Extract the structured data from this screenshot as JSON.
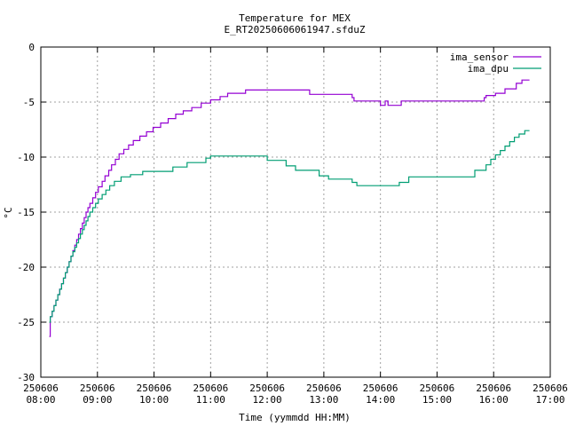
{
  "chart_data": {
    "type": "line",
    "title": "Temperature for MEX",
    "subtitle": "E_RT20250606061947.sfduZ",
    "xlabel": "Time (yymmdd HH:MM)",
    "ylabel": "°C",
    "xlim": [
      "250606 08:00",
      "250606 17:00"
    ],
    "ylim": [
      -30,
      0
    ],
    "yticks": [
      0,
      -5,
      -10,
      -15,
      -20,
      -25,
      -30
    ],
    "xtick_dates": [
      "250606",
      "250606",
      "250606",
      "250606",
      "250606",
      "250606",
      "250606",
      "250606",
      "250606",
      "250606"
    ],
    "xtick_times": [
      "08:00",
      "09:00",
      "10:00",
      "11:00",
      "12:00",
      "13:00",
      "14:00",
      "15:00",
      "16:00",
      "17:00"
    ],
    "grid": true,
    "legend_position": "top-right",
    "series": [
      {
        "name": "ima_sensor",
        "color": "#9400d3",
        "points": [
          [
            "08:09",
            -26.3
          ],
          [
            "08:10",
            -24.5
          ],
          [
            "08:12",
            -24.0
          ],
          [
            "08:14",
            -23.5
          ],
          [
            "08:16",
            -23.0
          ],
          [
            "08:18",
            -22.5
          ],
          [
            "08:20",
            -22.0
          ],
          [
            "08:22",
            -21.5
          ],
          [
            "08:24",
            -21.0
          ],
          [
            "08:26",
            -20.5
          ],
          [
            "08:28",
            -20.0
          ],
          [
            "08:30",
            -19.5
          ],
          [
            "08:32",
            -19.0
          ],
          [
            "08:34",
            -18.5
          ],
          [
            "08:36",
            -18.0
          ],
          [
            "08:38",
            -17.5
          ],
          [
            "08:40",
            -17.0
          ],
          [
            "08:42",
            -16.5
          ],
          [
            "08:44",
            -16.0
          ],
          [
            "08:46",
            -15.5
          ],
          [
            "08:48",
            -15.0
          ],
          [
            "08:50",
            -14.6
          ],
          [
            "08:52",
            -14.2
          ],
          [
            "08:55",
            -13.7
          ],
          [
            "08:58",
            -13.2
          ],
          [
            "09:01",
            -12.7
          ],
          [
            "09:05",
            -12.2
          ],
          [
            "09:08",
            -11.7
          ],
          [
            "09:12",
            -11.2
          ],
          [
            "09:15",
            -10.7
          ],
          [
            "09:19",
            -10.2
          ],
          [
            "09:23",
            -9.7
          ],
          [
            "09:28",
            -9.3
          ],
          [
            "09:33",
            -8.9
          ],
          [
            "09:38",
            -8.5
          ],
          [
            "09:45",
            -8.1
          ],
          [
            "09:52",
            -7.7
          ],
          [
            "09:59",
            -7.3
          ],
          [
            "10:07",
            -6.9
          ],
          [
            "10:15",
            -6.5
          ],
          [
            "10:23",
            -6.1
          ],
          [
            "10:31",
            -5.8
          ],
          [
            "10:40",
            -5.5
          ],
          [
            "10:50",
            -5.1
          ],
          [
            "11:00",
            -4.8
          ],
          [
            "11:10",
            -4.5
          ],
          [
            "11:18",
            -4.2
          ],
          [
            "11:37",
            -3.9
          ],
          [
            "12:45",
            -4.3
          ],
          [
            "13:30",
            -4.6
          ],
          [
            "13:32",
            -4.9
          ],
          [
            "14:00",
            -5.3
          ],
          [
            "14:05",
            -4.9
          ],
          [
            "14:08",
            -5.3
          ],
          [
            "14:22",
            -4.9
          ],
          [
            "15:50",
            -4.6
          ],
          [
            "15:52",
            -4.4
          ],
          [
            "16:02",
            -4.2
          ],
          [
            "16:12",
            -3.8
          ],
          [
            "16:24",
            -3.3
          ],
          [
            "16:30",
            -3.0
          ],
          [
            "16:38",
            -3.0
          ]
        ]
      },
      {
        "name": "ima_dpu",
        "color": "#009e73",
        "points": [
          [
            "08:09",
            -25.0
          ],
          [
            "08:10",
            -24.5
          ],
          [
            "08:12",
            -24.0
          ],
          [
            "08:14",
            -23.5
          ],
          [
            "08:16",
            -23.0
          ],
          [
            "08:18",
            -22.5
          ],
          [
            "08:20",
            -22.0
          ],
          [
            "08:22",
            -21.5
          ],
          [
            "08:24",
            -21.0
          ],
          [
            "08:26",
            -20.5
          ],
          [
            "08:28",
            -20.0
          ],
          [
            "08:30",
            -19.5
          ],
          [
            "08:32",
            -19.0
          ],
          [
            "08:34",
            -18.6
          ],
          [
            "08:36",
            -18.2
          ],
          [
            "08:38",
            -17.8
          ],
          [
            "08:40",
            -17.4
          ],
          [
            "08:42",
            -17.0
          ],
          [
            "08:44",
            -16.6
          ],
          [
            "08:46",
            -16.2
          ],
          [
            "08:48",
            -15.8
          ],
          [
            "08:50",
            -15.4
          ],
          [
            "08:52",
            -15.0
          ],
          [
            "08:55",
            -14.6
          ],
          [
            "08:58",
            -14.2
          ],
          [
            "09:01",
            -13.8
          ],
          [
            "09:05",
            -13.4
          ],
          [
            "09:09",
            -13.0
          ],
          [
            "09:13",
            -12.6
          ],
          [
            "09:18",
            -12.2
          ],
          [
            "09:25",
            -11.8
          ],
          [
            "09:35",
            -11.6
          ],
          [
            "09:48",
            -11.3
          ],
          [
            "10:20",
            -10.9
          ],
          [
            "10:35",
            -10.5
          ],
          [
            "10:55",
            -10.1
          ],
          [
            "11:00",
            -9.9
          ],
          [
            "12:00",
            -10.3
          ],
          [
            "12:20",
            -10.8
          ],
          [
            "12:30",
            -11.2
          ],
          [
            "12:55",
            -11.7
          ],
          [
            "13:05",
            -12.0
          ],
          [
            "13:30",
            -12.3
          ],
          [
            "13:35",
            -12.6
          ],
          [
            "14:20",
            -12.3
          ],
          [
            "14:30",
            -11.8
          ],
          [
            "15:40",
            -11.2
          ],
          [
            "15:52",
            -10.7
          ],
          [
            "15:57",
            -10.2
          ],
          [
            "16:02",
            -9.8
          ],
          [
            "16:07",
            -9.4
          ],
          [
            "16:12",
            -9.0
          ],
          [
            "16:17",
            -8.6
          ],
          [
            "16:22",
            -8.2
          ],
          [
            "16:27",
            -7.9
          ],
          [
            "16:33",
            -7.6
          ],
          [
            "16:38",
            -7.6
          ]
        ]
      }
    ]
  }
}
